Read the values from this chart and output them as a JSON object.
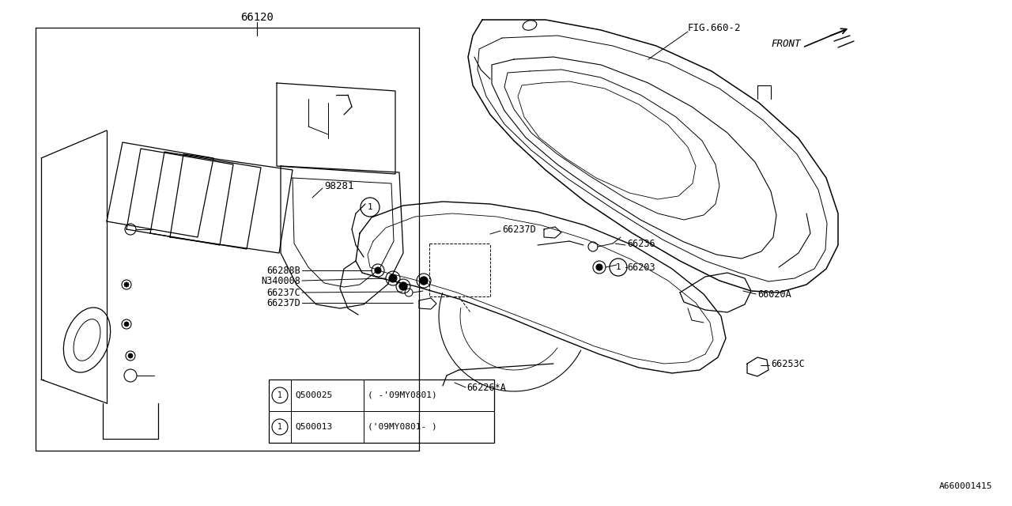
{
  "bg_color": "#ffffff",
  "line_color": "#000000",
  "diagram_code": "A660001415",
  "fig_ref": "FIG.660-2",
  "front_label": "FRONT",
  "label_66120": "66120",
  "label_98281": "98281",
  "label_66236": "66236",
  "label_66203": "66203",
  "label_66288B": "66288B",
  "label_N340008": "N340008",
  "label_66237C": "66237C",
  "label_66237D": "66237D",
  "label_66020A": "66020A",
  "label_66226A": "66226*A",
  "label_66253C": "66253C",
  "legend_q1": "Q500025",
  "legend_q1_range": "( -’09MY0801)",
  "legend_q2": "Q500013",
  "legend_q2_range": "(’09MY0801- )",
  "note1": "(-'09MY0801)",
  "note2": "('09MY0801-)"
}
